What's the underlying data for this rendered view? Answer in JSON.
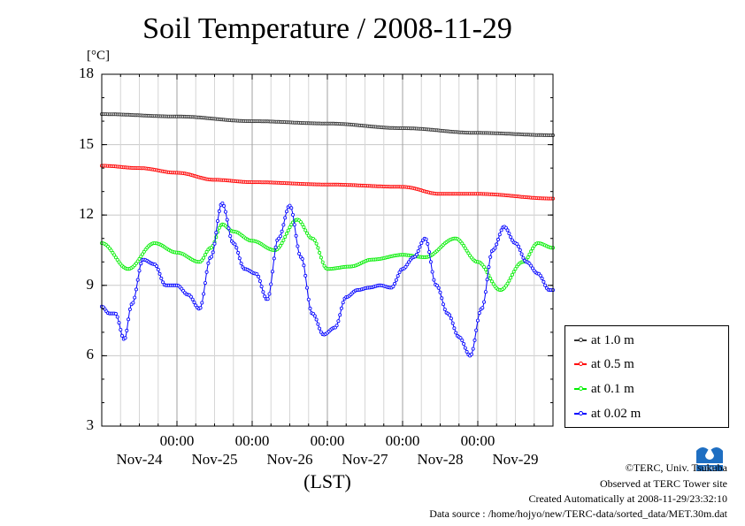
{
  "title": "Soil Temperature / 2008-11-29",
  "y_unit": "[°C]",
  "x_axis_label": "(LST)",
  "footer": {
    "copyright": "©TERC, Univ. Tsukuba",
    "observed": "Observed at TERC Tower site",
    "created": "Created Automatically at 2008-11-29/23:32:10",
    "source": "Data source : /home/hojyo/new/TERC-data/sorted_data/MET.30m.dat"
  },
  "legend": [
    {
      "label": "at 1.0 m",
      "color": "#333333"
    },
    {
      "label": "at 0.5 m",
      "color": "#ff0000"
    },
    {
      "label": "at 0.1 m",
      "color": "#00ee00"
    },
    {
      "label": "at 0.02 m",
      "color": "#0000ff"
    }
  ],
  "chart_data": {
    "type": "line",
    "title": "Soil Temperature / 2008-11-29",
    "ylabel": "[°C]",
    "xlabel": "(LST)",
    "ylim": [
      3,
      18
    ],
    "xlim": [
      0,
      6
    ],
    "yticks": [
      "18",
      "15",
      "12",
      "9",
      "6",
      "3"
    ],
    "x_tick_labels": [
      {
        "time": "00:00",
        "date": "Nov-25"
      },
      {
        "time": "00:00",
        "date": "Nov-26"
      },
      {
        "time": "00:00",
        "date": "Nov-27"
      },
      {
        "time": "00:00",
        "date": "Nov-28"
      },
      {
        "time": "00:00",
        "date": "Nov-29"
      }
    ],
    "first_date_label": "Nov-24",
    "grid": true,
    "legend_position": "right",
    "series": [
      {
        "name": "at 1.0 m",
        "color": "#333333",
        "x": [
          0,
          1,
          2,
          3,
          4,
          5,
          6
        ],
        "y": [
          16.3,
          16.2,
          16.0,
          15.9,
          15.7,
          15.5,
          15.4
        ]
      },
      {
        "name": "at 0.5 m",
        "color": "#ff0000",
        "x": [
          0,
          0.5,
          1.0,
          1.5,
          2.0,
          3.0,
          4.0,
          4.5,
          5.0,
          6.0
        ],
        "y": [
          14.1,
          14.0,
          13.8,
          13.5,
          13.4,
          13.3,
          13.2,
          12.9,
          12.9,
          12.7
        ]
      },
      {
        "name": "at 0.1 m",
        "color": "#00ee00",
        "x": [
          0,
          0.35,
          0.7,
          1.0,
          1.3,
          1.45,
          1.6,
          1.75,
          2.0,
          2.3,
          2.6,
          2.8,
          3.0,
          3.3,
          3.6,
          4.0,
          4.3,
          4.7,
          5.0,
          5.3,
          5.6,
          5.8,
          6.0
        ],
        "y": [
          10.8,
          9.7,
          10.8,
          10.4,
          10.0,
          10.6,
          11.6,
          11.3,
          10.9,
          10.5,
          11.8,
          11.0,
          9.7,
          9.8,
          10.1,
          10.3,
          10.2,
          11.0,
          10.0,
          8.8,
          10.0,
          10.8,
          10.6
        ]
      },
      {
        "name": "at 0.02 m",
        "color": "#0000ff",
        "x": [
          0,
          0.1,
          0.18,
          0.3,
          0.4,
          0.55,
          0.7,
          0.85,
          1.0,
          1.15,
          1.3,
          1.45,
          1.6,
          1.75,
          1.9,
          2.05,
          2.2,
          2.35,
          2.5,
          2.65,
          2.8,
          2.95,
          3.1,
          3.25,
          3.4,
          3.55,
          3.7,
          3.85,
          4.0,
          4.15,
          4.3,
          4.45,
          4.6,
          4.75,
          4.9,
          5.05,
          5.2,
          5.35,
          5.5,
          5.65,
          5.8,
          5.95,
          6.0
        ],
        "y": [
          8.1,
          7.8,
          7.8,
          6.7,
          8.2,
          10.1,
          9.9,
          9.0,
          9.0,
          8.6,
          8.0,
          10.2,
          12.5,
          10.8,
          9.7,
          9.5,
          8.4,
          11.0,
          12.4,
          10.2,
          7.8,
          6.9,
          7.2,
          8.5,
          8.8,
          8.9,
          9.0,
          8.9,
          9.7,
          10.2,
          11.0,
          9.0,
          7.8,
          6.8,
          6.0,
          8.0,
          10.5,
          11.5,
          10.8,
          10.0,
          9.5,
          8.8,
          8.8
        ]
      }
    ]
  }
}
